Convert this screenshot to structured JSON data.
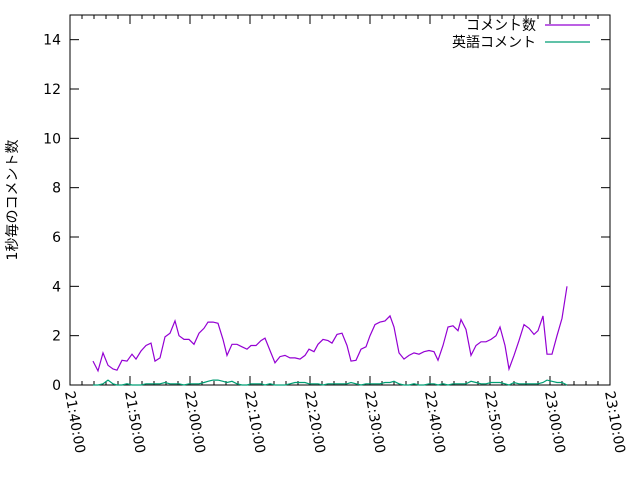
{
  "chart_data": {
    "type": "line",
    "title": "",
    "xlabel": "",
    "ylabel": "1秒毎のコメント数",
    "xlim": [
      "21:40:00",
      "23:10:00"
    ],
    "ylim": [
      0,
      15
    ],
    "xticks": [
      "21:40:00",
      "21:50:00",
      "22:00:00",
      "22:10:00",
      "22:20:00",
      "22:30:00",
      "22:40:00",
      "22:50:00",
      "23:00:00",
      "23:10:00"
    ],
    "yticks": [
      "0",
      "2",
      "4",
      "6",
      "8",
      "10",
      "12",
      "14"
    ],
    "grid": false,
    "legend_position": "top-right",
    "x": [
      "21:43:50",
      "21:44:40",
      "21:45:30",
      "21:46:20",
      "21:47:10",
      "21:47:50",
      "21:48:40",
      "21:49:30",
      "21:50:20",
      "21:51:00",
      "21:51:50",
      "21:52:40",
      "21:53:30",
      "21:54:10",
      "21:55:00",
      "21:55:50",
      "21:56:40",
      "21:57:30",
      "21:58:10",
      "21:59:00",
      "21:59:50",
      "22:00:40",
      "22:01:30",
      "22:02:20",
      "22:03:00",
      "22:03:50",
      "22:04:40",
      "22:05:30",
      "22:06:10",
      "22:07:00",
      "22:07:50",
      "22:08:40",
      "22:09:30",
      "22:10:10",
      "22:11:00",
      "22:11:50",
      "22:12:30",
      "22:13:20",
      "22:14:10",
      "22:15:00",
      "22:15:50",
      "22:16:40",
      "22:17:30",
      "22:18:20",
      "22:19:10",
      "22:19:50",
      "22:20:40",
      "22:21:20",
      "22:22:10",
      "22:23:00",
      "22:23:40",
      "22:24:30",
      "22:25:20",
      "22:26:10",
      "22:26:50",
      "22:27:40",
      "22:28:30",
      "22:29:20",
      "22:30:00",
      "22:30:50",
      "22:31:40",
      "22:32:30",
      "22:33:20",
      "22:34:00",
      "22:34:50",
      "22:35:40",
      "22:36:30",
      "22:37:20",
      "22:38:10",
      "22:39:00",
      "22:39:50",
      "22:40:40",
      "22:41:20",
      "22:42:10",
      "22:43:00",
      "22:43:50",
      "22:44:40",
      "22:45:10",
      "22:46:00",
      "22:46:50",
      "22:47:40",
      "22:48:30",
      "22:49:20",
      "22:50:10",
      "22:51:00",
      "22:51:40",
      "22:52:30",
      "22:53:10",
      "22:54:00",
      "22:54:50",
      "22:55:40",
      "22:56:30",
      "22:57:20",
      "22:58:00",
      "22:58:50",
      "22:59:30",
      "23:00:20",
      "23:01:10",
      "23:02:00",
      "23:02:50"
    ],
    "series": [
      {
        "name": "コメント数",
        "color": "#9400d3",
        "values": [
          0.97,
          0.57,
          1.3,
          0.8,
          0.65,
          0.6,
          1.0,
          0.97,
          1.25,
          1.05,
          1.38,
          1.6,
          1.7,
          0.97,
          1.1,
          1.95,
          2.1,
          2.6,
          2.0,
          1.85,
          1.85,
          1.65,
          2.1,
          2.3,
          2.55,
          2.55,
          2.5,
          1.85,
          1.2,
          1.65,
          1.65,
          1.55,
          1.45,
          1.6,
          1.6,
          1.8,
          1.9,
          1.4,
          0.9,
          1.15,
          1.2,
          1.1,
          1.1,
          1.05,
          1.2,
          1.45,
          1.35,
          1.65,
          1.85,
          1.8,
          1.7,
          2.05,
          2.1,
          1.6,
          0.97,
          1.0,
          1.45,
          1.55,
          2.0,
          2.45,
          2.55,
          2.6,
          2.8,
          2.35,
          1.3,
          1.05,
          1.2,
          1.3,
          1.25,
          1.35,
          1.4,
          1.35,
          1.0,
          1.6,
          2.35,
          2.4,
          2.2,
          2.65,
          2.25,
          1.2,
          1.6,
          1.75,
          1.75,
          1.85,
          2.0,
          2.35,
          1.6,
          0.65,
          1.2,
          1.8,
          2.45,
          2.3,
          2.05,
          2.2,
          2.8,
          1.25,
          1.25,
          2.0,
          2.7,
          4.0
        ]
      },
      {
        "name": "英語コメント",
        "color": "#009e73",
        "values": [
          0,
          0,
          0.05,
          0.2,
          0.05,
          0,
          0,
          0.05,
          0,
          0,
          0,
          0.05,
          0.05,
          0.05,
          0.05,
          0.1,
          0.05,
          0.05,
          0.05,
          0,
          0.05,
          0.05,
          0.05,
          0.1,
          0.15,
          0.2,
          0.2,
          0.15,
          0.1,
          0.15,
          0.05,
          0,
          0,
          0.05,
          0.05,
          0.05,
          0,
          0.05,
          0,
          0,
          0,
          0.05,
          0.1,
          0.1,
          0.1,
          0.05,
          0.05,
          0.05,
          0,
          0.05,
          0.05,
          0.05,
          0.05,
          0.05,
          0.1,
          0.05,
          0,
          0.05,
          0.05,
          0.05,
          0.05,
          0.1,
          0.1,
          0.15,
          0.05,
          0,
          0,
          0.05,
          0,
          0,
          0.05,
          0.05,
          0,
          0.05,
          0,
          0.05,
          0.05,
          0.05,
          0.05,
          0.15,
          0.1,
          0.05,
          0.05,
          0.1,
          0.1,
          0.1,
          0.05,
          0,
          0.1,
          0.05,
          0.05,
          0.05,
          0.05,
          0.05,
          0.1,
          0.2,
          0.15,
          0.1,
          0.1,
          0
        ]
      }
    ]
  }
}
